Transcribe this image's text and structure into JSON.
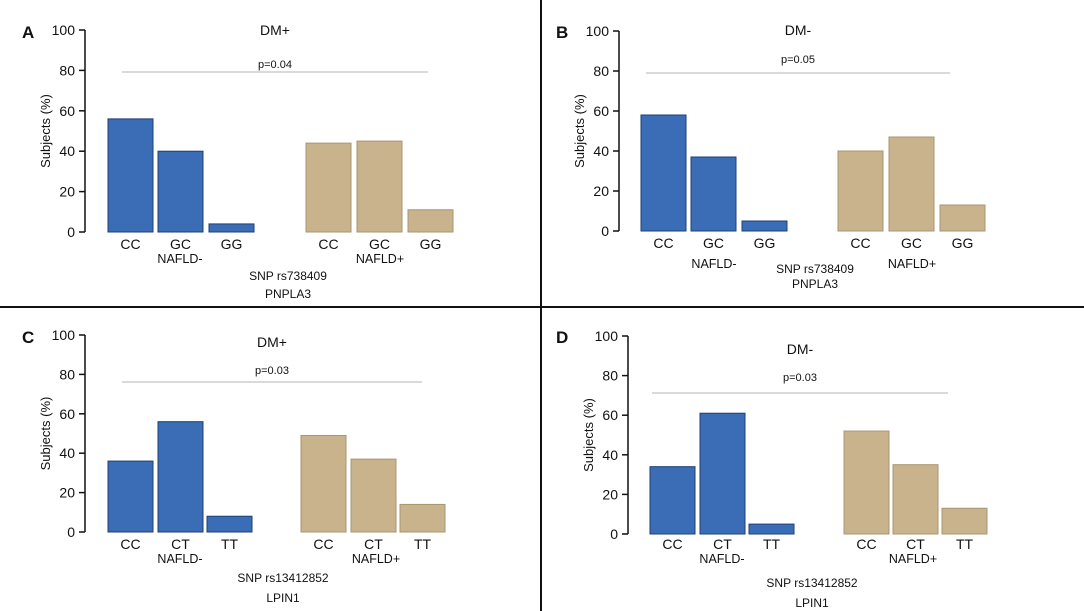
{
  "colors": {
    "nafld_minus": "#3a6db5",
    "nafld_plus": "#c9b38c",
    "bar_edge": "#1e3f73",
    "bar_edge_plus": "#a89572",
    "pline": "#b5b5b5",
    "axis": "#111111",
    "divider": "#111111"
  },
  "chart_data": [
    {
      "panel": "A",
      "type": "bar",
      "title": "DM+",
      "ylabel": "Subjects (%)",
      "ylim": [
        0,
        100
      ],
      "yticks": [
        "0",
        "20",
        "40",
        "60",
        "80",
        "100"
      ],
      "pvalue": "p=0.04",
      "groups": [
        "NAFLD-",
        "NAFLD+"
      ],
      "categories": [
        "CC",
        "GC",
        "GG"
      ],
      "series": [
        {
          "name": "NAFLD-",
          "values": [
            56,
            40,
            4
          ]
        },
        {
          "name": "NAFLD+",
          "values": [
            44,
            45,
            11
          ]
        }
      ],
      "snp": "SNP rs738409",
      "gene": "PNPLA3"
    },
    {
      "panel": "B",
      "type": "bar",
      "title": "DM-",
      "ylabel": "Subjects (%)",
      "ylim": [
        0,
        100
      ],
      "yticks": [
        "0",
        "20",
        "40",
        "60",
        "80",
        "100"
      ],
      "pvalue": "p=0.05",
      "groups": [
        "NAFLD-",
        "NAFLD+"
      ],
      "categories": [
        "CC",
        "GC",
        "GG"
      ],
      "series": [
        {
          "name": "NAFLD-",
          "values": [
            58,
            37,
            5
          ]
        },
        {
          "name": "NAFLD+",
          "values": [
            40,
            47,
            13
          ]
        }
      ],
      "snp": "SNP rs738409",
      "gene": "PNPLA3"
    },
    {
      "panel": "C",
      "type": "bar",
      "title": "DM+",
      "ylabel": "Subjects (%)",
      "ylim": [
        0,
        100
      ],
      "yticks": [
        "0",
        "20",
        "40",
        "60",
        "80",
        "100"
      ],
      "pvalue": "p=0.03",
      "groups": [
        "NAFLD-",
        "NAFLD+"
      ],
      "categories": [
        "CC",
        "CT",
        "TT"
      ],
      "series": [
        {
          "name": "NAFLD-",
          "values": [
            36,
            56,
            8
          ]
        },
        {
          "name": "NAFLD+",
          "values": [
            49,
            37,
            14
          ]
        }
      ],
      "snp": "SNP rs13412852",
      "gene": "LPIN1"
    },
    {
      "panel": "D",
      "type": "bar",
      "title": "DM-",
      "ylabel": "Subjects (%)",
      "ylim": [
        0,
        100
      ],
      "yticks": [
        "0",
        "20",
        "40",
        "60",
        "80",
        "100"
      ],
      "pvalue": "p=0.03",
      "groups": [
        "NAFLD-",
        "NAFLD+"
      ],
      "categories": [
        "CC",
        "CT",
        "TT"
      ],
      "series": [
        {
          "name": "NAFLD-",
          "values": [
            34,
            61,
            5
          ]
        },
        {
          "name": "NAFLD+",
          "values": [
            52,
            35,
            13
          ]
        }
      ],
      "snp": "SNP rs13412852",
      "gene": "LPIN1"
    }
  ]
}
